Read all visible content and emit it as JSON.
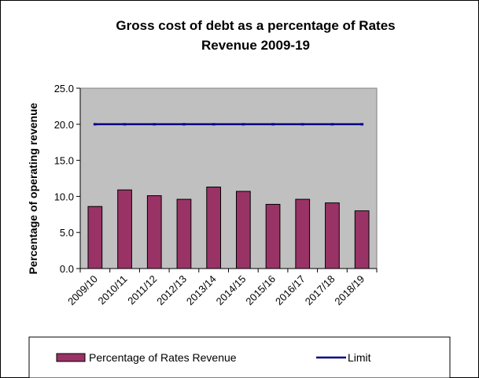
{
  "chart_data": {
    "type": "bar",
    "title_lines": [
      "Gross cost of debt as a percentage of Rates",
      "Revenue 2009-19"
    ],
    "ylabel": "Percentage of operating revenue",
    "xlabel": "",
    "categories": [
      "2009/10",
      "2010/11",
      "2011/12",
      "2012/13",
      "2013/14",
      "2014/15",
      "2015/16",
      "2016/17",
      "2017/18",
      "2018/19"
    ],
    "yticks": [
      "0.0",
      "5.0",
      "10.0",
      "15.0",
      "20.0",
      "25.0"
    ],
    "ylim": [
      0,
      25
    ],
    "grid": false,
    "legend_position": "bottom",
    "series": [
      {
        "name": "Percentage of Rates Revenue",
        "type": "bar",
        "color": "#993366",
        "values": [
          8.6,
          10.9,
          10.1,
          9.6,
          11.3,
          10.7,
          8.9,
          9.6,
          9.1,
          8.0
        ]
      },
      {
        "name": "Limit",
        "type": "line",
        "color": "#000080",
        "values": [
          20,
          20,
          20,
          20,
          20,
          20,
          20,
          20,
          20,
          20
        ]
      }
    ],
    "plot_background": "#c0c0c0"
  }
}
